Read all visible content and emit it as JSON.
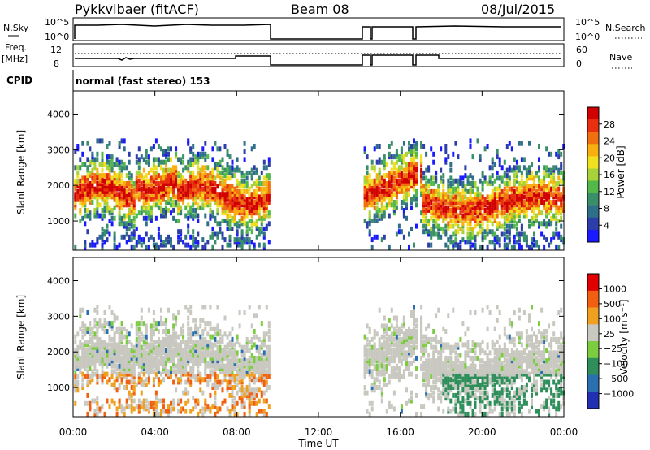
{
  "header": {
    "title": "Pykkvibaer (fitACF)",
    "beam": "Beam 08",
    "date": "08/Jul/2015"
  },
  "params": {
    "nsky_label": "N.Sky",
    "nsearch_label": "N.Search",
    "log_ticks": [
      "10^5",
      "10^0"
    ],
    "freq_label": "Freq.",
    "freq_unit": "[MHz]",
    "freq_ticks": [
      "12",
      "8"
    ],
    "nave_label": "Nave",
    "nave_ticks": [
      "60",
      "0"
    ],
    "cpid_label": "CPID",
    "cpid_text": "normal (fast stereo) 153"
  },
  "chart_data": [
    {
      "type": "heatmap",
      "name_hint": "power",
      "ylabel": "Slant Range [km]",
      "xlabel": "",
      "yticks": [
        "4000",
        "3000",
        "2000",
        "1000"
      ],
      "ytick_values": [
        4000,
        3000,
        2000,
        1000
      ],
      "ylim": [
        180,
        4650
      ],
      "xlim_hours": [
        0,
        24
      ],
      "colorbar_label": "Power [dB]",
      "colorbar_ticks": [
        "28",
        "24",
        "20",
        "16",
        "12",
        "8",
        "4"
      ],
      "colorbar_colors": [
        "#1a1aff",
        "#2d3ea8",
        "#2f6f8a",
        "#3a8f6a",
        "#52b84a",
        "#a9d13a",
        "#f0e020",
        "#f8b010",
        "#f07010",
        "#e83010",
        "#d00000"
      ],
      "data_gaps_hours": [
        [
          9.6,
          14.2
        ]
      ]
    },
    {
      "type": "heatmap",
      "name_hint": "velocity",
      "ylabel": "Slant Range [km]",
      "xlabel": "Time UT",
      "yticks": [
        "4000",
        "3000",
        "2000",
        "1000"
      ],
      "ytick_values": [
        4000,
        3000,
        2000,
        1000
      ],
      "ylim": [
        180,
        4650
      ],
      "xticks": [
        "00:00",
        "04:00",
        "08:00",
        "12:00",
        "16:00",
        "20:00",
        "00:00"
      ],
      "xtick_hours": [
        0,
        4,
        8,
        12,
        16,
        20,
        24
      ],
      "colorbar_label": "Velocity [m s⁻¹]",
      "colorbar_ticks": [
        "1000",
        "500",
        "100",
        "25",
        "−25",
        "−100",
        "−500",
        "−1000"
      ],
      "colorbar_colors": [
        "#2030b0",
        "#2a70b0",
        "#2e8f5a",
        "#7ccc40",
        "#c8c8c0",
        "#f0a020",
        "#f06010",
        "#e00000"
      ],
      "data_gaps_hours": [
        [
          9.6,
          14.2
        ]
      ]
    }
  ]
}
